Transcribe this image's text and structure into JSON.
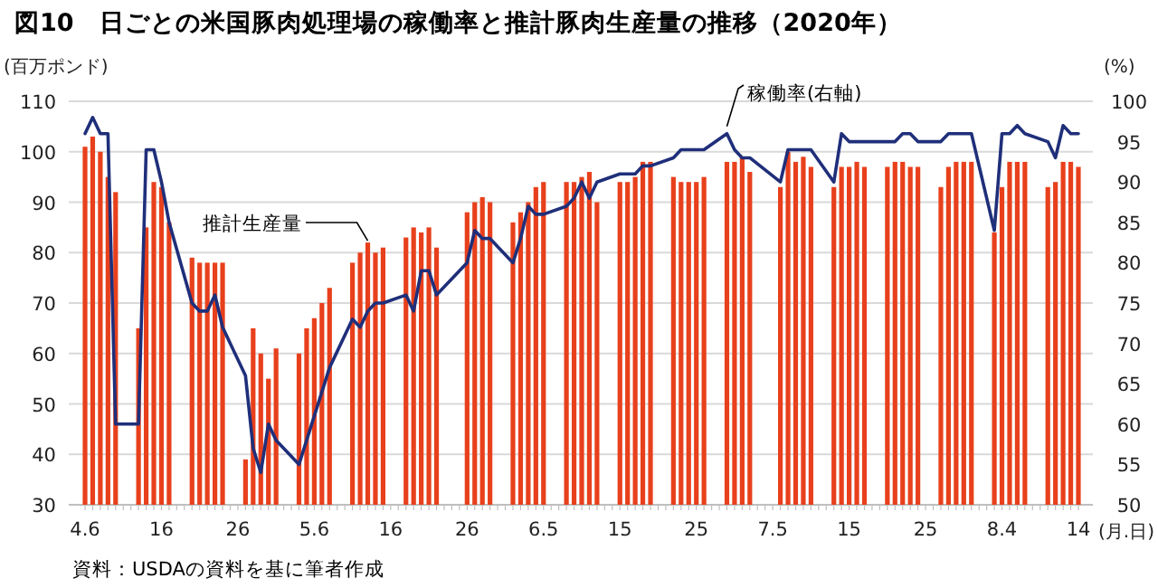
{
  "chart_data": {
    "type": "bar",
    "title": "図10　日ごとの米国豚肉処理場の稼働率と推計豚肉生産量の推移（2020年）",
    "categories": [
      "4.6",
      null,
      null,
      null,
      null,
      null,
      null,
      null,
      null,
      null,
      "16",
      null,
      null,
      null,
      null,
      null,
      null,
      null,
      null,
      null,
      "26",
      null,
      null,
      null,
      null,
      null,
      null,
      null,
      null,
      null,
      "5.6",
      null,
      null,
      null,
      null,
      null,
      null,
      null,
      null,
      null,
      "16",
      null,
      null,
      null,
      null,
      null,
      null,
      null,
      null,
      null,
      "26",
      null,
      null,
      null,
      null,
      null,
      null,
      null,
      null,
      null,
      "6.5",
      null,
      null,
      null,
      null,
      null,
      null,
      null,
      null,
      null,
      "15",
      null,
      null,
      null,
      null,
      null,
      null,
      null,
      null,
      null,
      "25",
      null,
      null,
      null,
      null,
      null,
      null,
      null,
      null,
      null,
      "7.5",
      null,
      null,
      null,
      null,
      null,
      null,
      null,
      null,
      null,
      "15",
      null,
      null,
      null,
      null,
      null,
      null,
      null,
      null,
      null,
      "25",
      null,
      null,
      null,
      null,
      null,
      null,
      null,
      null,
      null,
      "8.4",
      null,
      null,
      null,
      null,
      null,
      null,
      null,
      null,
      null,
      "14"
    ],
    "series": [
      {
        "name": "推計生産量",
        "color": "#e8401c",
        "values": [
          101,
          103,
          100,
          95,
          92,
          null,
          null,
          65,
          85,
          94,
          93,
          86,
          null,
          null,
          79,
          78,
          78,
          78,
          78,
          null,
          null,
          39,
          65,
          60,
          55,
          61,
          null,
          null,
          60,
          65,
          67,
          70,
          73,
          null,
          null,
          78,
          80,
          82,
          80,
          81,
          null,
          null,
          83,
          85,
          84,
          85,
          81,
          null,
          null,
          null,
          88,
          90,
          91,
          90,
          null,
          null,
          86,
          88,
          90,
          93,
          94,
          null,
          null,
          94,
          94,
          95,
          96,
          90,
          null,
          null,
          94,
          94,
          95,
          98,
          98,
          null,
          null,
          95,
          94,
          94,
          94,
          95,
          null,
          null,
          98,
          98,
          99,
          96,
          null,
          null,
          null,
          93,
          100,
          98,
          99,
          97,
          null,
          null,
          93,
          97,
          97,
          98,
          97,
          null,
          null,
          97,
          98,
          98,
          97,
          97,
          null,
          null,
          93,
          97,
          98,
          98,
          98,
          null,
          null,
          84,
          93,
          98,
          98,
          98,
          null,
          null,
          93,
          94,
          98,
          98,
          97
        ]
      },
      {
        "name": "稼働率(右軸)",
        "type": "line",
        "axis": "y2",
        "color": "#1f2f7a",
        "values": [
          96,
          98,
          96,
          96,
          60,
          null,
          null,
          60,
          94,
          94,
          90,
          85,
          null,
          null,
          75,
          74,
          74,
          76,
          72,
          null,
          null,
          66,
          57,
          54,
          60,
          58,
          null,
          null,
          55,
          58,
          61,
          64,
          67,
          null,
          null,
          73,
          72,
          74,
          75,
          75,
          null,
          null,
          76,
          74,
          79,
          79,
          76,
          null,
          null,
          null,
          80,
          84,
          83,
          83,
          null,
          null,
          80,
          83,
          87,
          86,
          86,
          null,
          null,
          87,
          88,
          90,
          88,
          90,
          null,
          null,
          91,
          91,
          91,
          92,
          92,
          null,
          null,
          93,
          94,
          94,
          94,
          94,
          null,
          null,
          96,
          94,
          93,
          93,
          null,
          null,
          null,
          90,
          94,
          94,
          94,
          94,
          null,
          null,
          90,
          96,
          95,
          95,
          95,
          null,
          null,
          95,
          95,
          96,
          96,
          95,
          null,
          null,
          95,
          96,
          96,
          96,
          96,
          null,
          null,
          84,
          96,
          96,
          97,
          96,
          null,
          null,
          95,
          93,
          97,
          96,
          96
        ]
      }
    ],
    "ylim": [
      30,
      110
    ],
    "yticks": [
      30,
      40,
      50,
      60,
      70,
      80,
      90,
      100,
      110
    ],
    "y2lim": [
      50,
      100
    ],
    "y2ticks": [
      50,
      55,
      60,
      65,
      70,
      75,
      80,
      85,
      90,
      95,
      100
    ],
    "ylabel": "(百万ポンド)",
    "y2label": "(%)",
    "xlabel": "(月.日)",
    "grid": "y",
    "annotations": [
      "資料：USDAの資料を基に筆者作成"
    ]
  }
}
